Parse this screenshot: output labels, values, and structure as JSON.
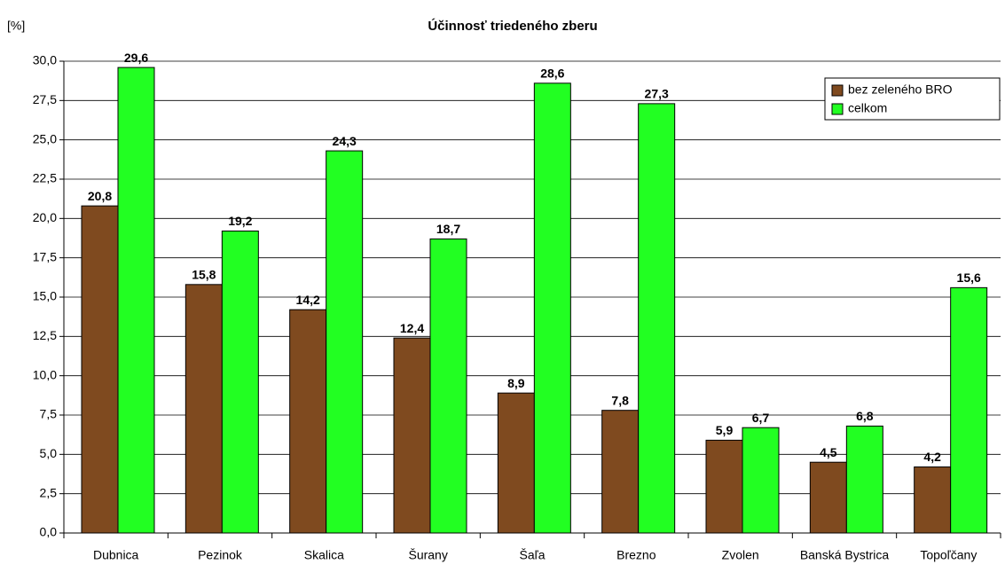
{
  "chart_data": {
    "type": "bar",
    "title": "Účinnosť triedeného zberu",
    "y_label": "[%]",
    "categories": [
      "Dubnica",
      "Pezinok",
      "Skalica",
      "Šurany",
      "Šaľa",
      "Brezno",
      "Zvolen",
      "Banská Bystrica",
      "Topoľčany"
    ],
    "series": [
      {
        "name": "bez zeleného BRO",
        "color": "#7f4a1f",
        "values": [
          20.8,
          15.8,
          14.2,
          12.4,
          8.9,
          7.8,
          5.9,
          4.5,
          4.2
        ],
        "value_labels": [
          "20,8",
          "15,8",
          "14,2",
          "12,4",
          "8,9",
          "7,8",
          "5,9",
          "4,5",
          "4,2"
        ]
      },
      {
        "name": "celkom",
        "color": "#22ff22",
        "values": [
          29.6,
          19.2,
          24.3,
          18.7,
          28.6,
          27.3,
          6.7,
          6.8,
          15.6
        ],
        "value_labels": [
          "29,6",
          "19,2",
          "24,3",
          "18,7",
          "28,6",
          "27,3",
          "6,7",
          "6,8",
          "15,6"
        ]
      }
    ],
    "ylim": [
      0,
      30
    ],
    "yticks": [
      {
        "value": 0,
        "label": "0,0"
      },
      {
        "value": 2.5,
        "label": "2,5"
      },
      {
        "value": 5,
        "label": "5,0"
      },
      {
        "value": 7.5,
        "label": "7,5"
      },
      {
        "value": 10,
        "label": "10,0"
      },
      {
        "value": 12.5,
        "label": "12,5"
      },
      {
        "value": 15,
        "label": "15,0"
      },
      {
        "value": 17.5,
        "label": "17,5"
      },
      {
        "value": 20,
        "label": "20,0"
      },
      {
        "value": 22.5,
        "label": "22,5"
      },
      {
        "value": 25,
        "label": "25,0"
      },
      {
        "value": 27.5,
        "label": "27,5"
      },
      {
        "value": 30,
        "label": "30,0"
      }
    ],
    "grid": true,
    "legend": "top-right"
  }
}
